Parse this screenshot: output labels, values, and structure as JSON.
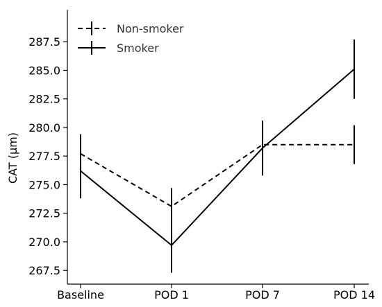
{
  "chart_data": {
    "type": "line",
    "categories": [
      "Baseline",
      "POD 1",
      "POD 7",
      "POD 14"
    ],
    "ylabel": "CAT (µm)",
    "xlabel": "",
    "ylim": [
      266.3,
      290.3
    ],
    "yticks": [
      "267.5",
      "270.0",
      "272.5",
      "275.0",
      "277.5",
      "280.0",
      "282.5",
      "285.0",
      "287.5"
    ],
    "grid": false,
    "legend_position": "top-left",
    "series": [
      {
        "name": "Non-smoker",
        "style": "dashed",
        "color": "#000000",
        "values": [
          277.7,
          273.1,
          278.5,
          278.5
        ],
        "error": [
          1.7,
          1.6,
          2.1,
          1.7
        ]
      },
      {
        "name": "Smoker",
        "style": "solid",
        "color": "#000000",
        "values": [
          276.2,
          269.7,
          278.2,
          285.1
        ],
        "error": [
          2.4,
          2.4,
          2.4,
          2.6
        ]
      }
    ]
  }
}
